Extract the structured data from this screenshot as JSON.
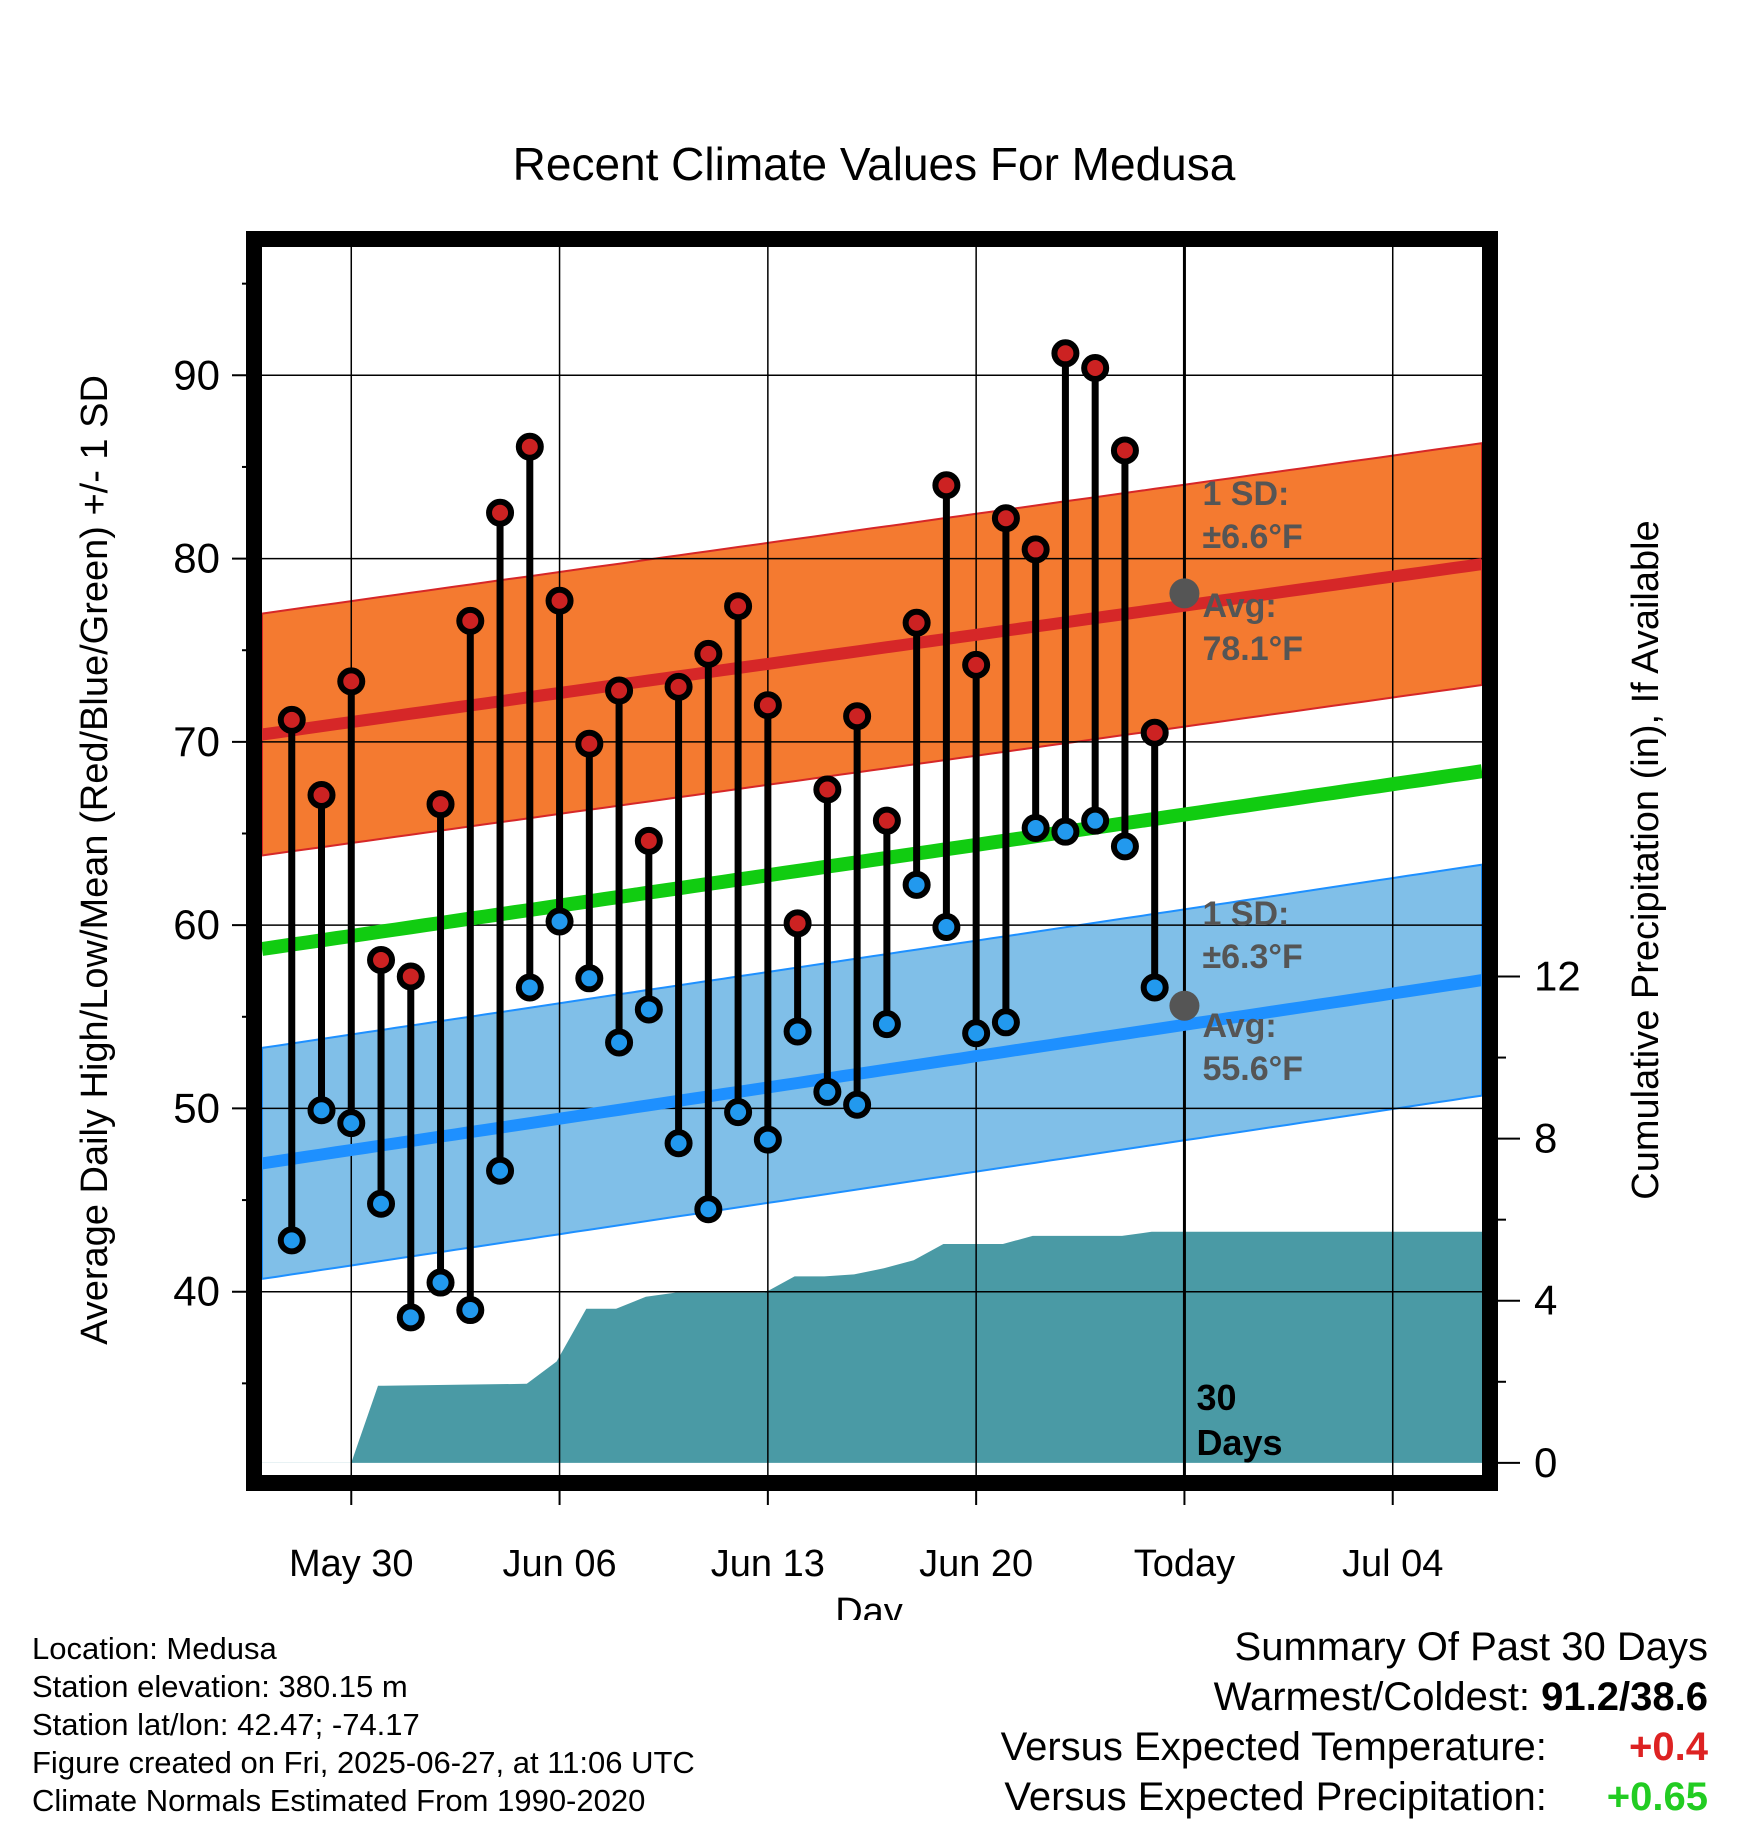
{
  "chart_data": {
    "type": "line",
    "title": "Recent Climate Values For Medusa",
    "xlabel": "Day",
    "ylabel_left": "Average Daily High/Low/Mean (Red/Blue/Green) +/- 1 SD",
    "ylabel_right": "Cumulative Precipitation (in), If Available",
    "x_ticks": [
      "May 30",
      "Jun 06",
      "Jun 13",
      "Jun 20",
      "Today",
      "Jul 04"
    ],
    "x_tick_days": [
      0,
      7,
      14,
      21,
      28,
      35
    ],
    "today_day": 28,
    "x_range_days": [
      -3,
      38
    ],
    "y_left_range": [
      30,
      97
    ],
    "y_left_ticks": [
      40,
      50,
      60,
      70,
      80,
      90
    ],
    "y_right_range": [
      -0.3,
      30
    ],
    "y_right_ticks": [
      0,
      4,
      8,
      12
    ],
    "grid": true,
    "today_label": "Today",
    "today_marker_label_1": "30",
    "today_marker_label_2": "Days",
    "normals": {
      "high_avg": [
        70.4,
        79.7
      ],
      "high_sd": 6.6,
      "low_avg": [
        47.0,
        57.0
      ],
      "low_sd": 6.3,
      "mean": [
        58.7,
        68.4
      ],
      "high_upper_end": 85.8,
      "low_lower_end": 51.4
    },
    "annotations": {
      "high_sd_label": "1 SD:",
      "high_sd_value": "±6.6°F",
      "high_avg_label": "Avg:",
      "high_avg_value": "78.1°F",
      "low_sd_label": "1 SD:",
      "low_sd_value": "±6.3°F",
      "low_avg_label": "Avg:",
      "low_avg_value": "55.6°F",
      "high_today_avg": 78.1,
      "low_today_avg": 55.6
    },
    "daily": {
      "day_offset": [
        -2,
        -1,
        0,
        1,
        2,
        3,
        4,
        5,
        6,
        7,
        8,
        9,
        10,
        11,
        12,
        13,
        14,
        15,
        16,
        17,
        18,
        19,
        20,
        21,
        22,
        23,
        24,
        25,
        26,
        27
      ],
      "high": [
        71.2,
        67.1,
        73.3,
        58.1,
        57.2,
        66.6,
        76.6,
        82.5,
        86.1,
        77.7,
        69.9,
        72.8,
        64.6,
        73.0,
        74.8,
        77.4,
        72.0,
        60.1,
        67.4,
        71.4,
        65.7,
        76.5,
        84.0,
        74.2,
        82.2,
        80.5,
        91.2,
        90.4,
        85.9,
        70.5
      ],
      "low": [
        42.8,
        49.9,
        49.2,
        44.8,
        38.6,
        40.5,
        39.0,
        46.6,
        56.6,
        60.2,
        57.1,
        53.6,
        55.4,
        48.1,
        44.5,
        49.8,
        48.3,
        54.2,
        50.9,
        50.2,
        54.6,
        62.2,
        59.9,
        54.1,
        54.7,
        65.3,
        65.1,
        65.7,
        64.3,
        56.6
      ]
    },
    "precip_cumulative": {
      "x": [
        -3,
        0,
        0.9,
        1.1,
        5.9,
        6.9,
        7.9,
        8.9,
        9.9,
        10.9,
        11.9,
        12.9,
        13.9,
        14.9,
        15.9,
        16.9,
        17.9,
        18.9,
        19.9,
        20.9,
        21.9,
        22.9,
        23.9,
        24.9,
        25.9,
        26.9,
        27.9,
        38
      ],
      "y": [
        0,
        0,
        1.9,
        1.9,
        1.95,
        2.5,
        3.8,
        3.8,
        4.1,
        4.2,
        4.2,
        4.2,
        4.2,
        4.6,
        4.6,
        4.65,
        4.8,
        5.0,
        5.4,
        5.4,
        5.4,
        5.6,
        5.6,
        5.6,
        5.6,
        5.7,
        5.7,
        5.7
      ]
    },
    "colors": {
      "high_band": "#f47a30",
      "high_line": "#d62728",
      "low_band": "#80bfe8",
      "low_line": "#1e90ff",
      "mean_line": "#11cc11",
      "precip": "#4a9aa5",
      "high_marker": "#cc2222",
      "low_marker": "#2299ee",
      "annotation": "#555555"
    }
  },
  "info": {
    "location": "Location: Medusa",
    "elevation": "Station elevation: 380.15 m",
    "latlon": "Station lat/lon: 42.47; -74.17",
    "created": "Figure created on Fri, 2025-06-27, at 11:06 UTC",
    "normals": "Climate Normals Estimated From 1990-2020"
  },
  "summary": {
    "title": "Summary Of Past 30 Days",
    "warmest_label": "Warmest/Coldest:",
    "warmest_value": "91.2/38.6",
    "temp_label": "Versus Expected Temperature:",
    "temp_value": "+0.4",
    "precip_label": "Versus Expected Precipitation:",
    "precip_value": "+0.65"
  }
}
